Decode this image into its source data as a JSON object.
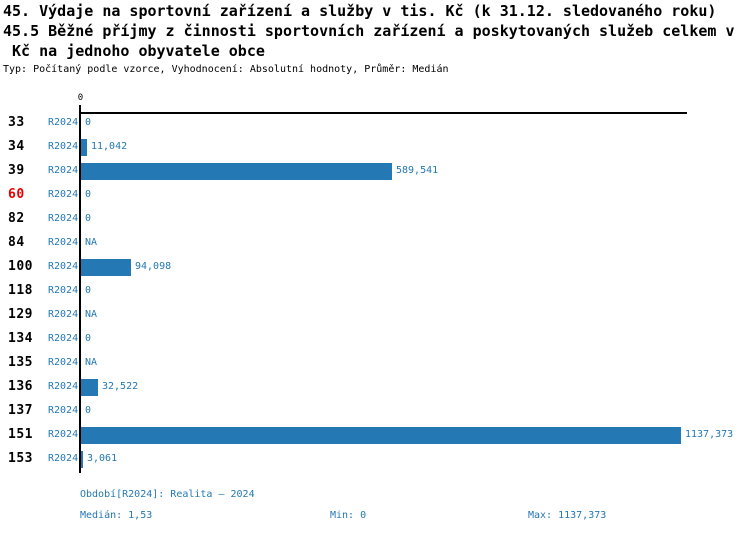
{
  "title": {
    "line1": "45. Výdaje na sportovní zařízení a služby v tis. Kč (k 31.12. sledovaného roku)",
    "line2": "45.5 Běžné příjmy z činnosti sportovních zařízení a poskytovaných služeb celkem v",
    "line3": " Kč na jednoho obyvatele obce",
    "meta": "Typ: Počítaný podle vzorce, Vyhodnocení: Absolutní hodnoty, Průměr: Medián"
  },
  "colors": {
    "accent_blue": "#2478b4",
    "highlight_red": "#e80000",
    "axis_black": "#000000"
  },
  "chart_data": {
    "type": "bar",
    "orientation": "horizontal",
    "axis_tick_label": "0",
    "xlim": [
      0,
      1137.373
    ],
    "grid": false,
    "series_name": "R2024",
    "categories": [
      "33",
      "34",
      "39",
      "60",
      "82",
      "84",
      "100",
      "118",
      "129",
      "134",
      "135",
      "136",
      "137",
      "151",
      "153"
    ],
    "rows": [
      {
        "id": "33",
        "period": "R2024",
        "value": 0,
        "label": "0",
        "highlight": false
      },
      {
        "id": "34",
        "period": "R2024",
        "value": 11.042,
        "label": "11,042",
        "highlight": false
      },
      {
        "id": "39",
        "period": "R2024",
        "value": 589.541,
        "label": "589,541",
        "highlight": false
      },
      {
        "id": "60",
        "period": "R2024",
        "value": 0,
        "label": "0",
        "highlight": true
      },
      {
        "id": "82",
        "period": "R2024",
        "value": 0,
        "label": "0",
        "highlight": false
      },
      {
        "id": "84",
        "period": "R2024",
        "value": null,
        "label": "NA",
        "highlight": false
      },
      {
        "id": "100",
        "period": "R2024",
        "value": 94.098,
        "label": "94,098",
        "highlight": false
      },
      {
        "id": "118",
        "period": "R2024",
        "value": 0,
        "label": "0",
        "highlight": false
      },
      {
        "id": "129",
        "period": "R2024",
        "value": null,
        "label": "NA",
        "highlight": false
      },
      {
        "id": "134",
        "period": "R2024",
        "value": 0,
        "label": "0",
        "highlight": false
      },
      {
        "id": "135",
        "period": "R2024",
        "value": null,
        "label": "NA",
        "highlight": false
      },
      {
        "id": "136",
        "period": "R2024",
        "value": 32.522,
        "label": "32,522",
        "highlight": false
      },
      {
        "id": "137",
        "period": "R2024",
        "value": 0,
        "label": "0",
        "highlight": false
      },
      {
        "id": "151",
        "period": "R2024",
        "value": 1137.373,
        "label": "1137,373",
        "highlight": false
      },
      {
        "id": "153",
        "period": "R2024",
        "value": 3.061,
        "label": "3,061",
        "highlight": false
      }
    ]
  },
  "footer": {
    "period_line": "Období[R2024]: Realita – 2024",
    "median_label": "Medián: 1,53",
    "min_label": "Min: 0",
    "max_label": "Max: 1137,373"
  }
}
